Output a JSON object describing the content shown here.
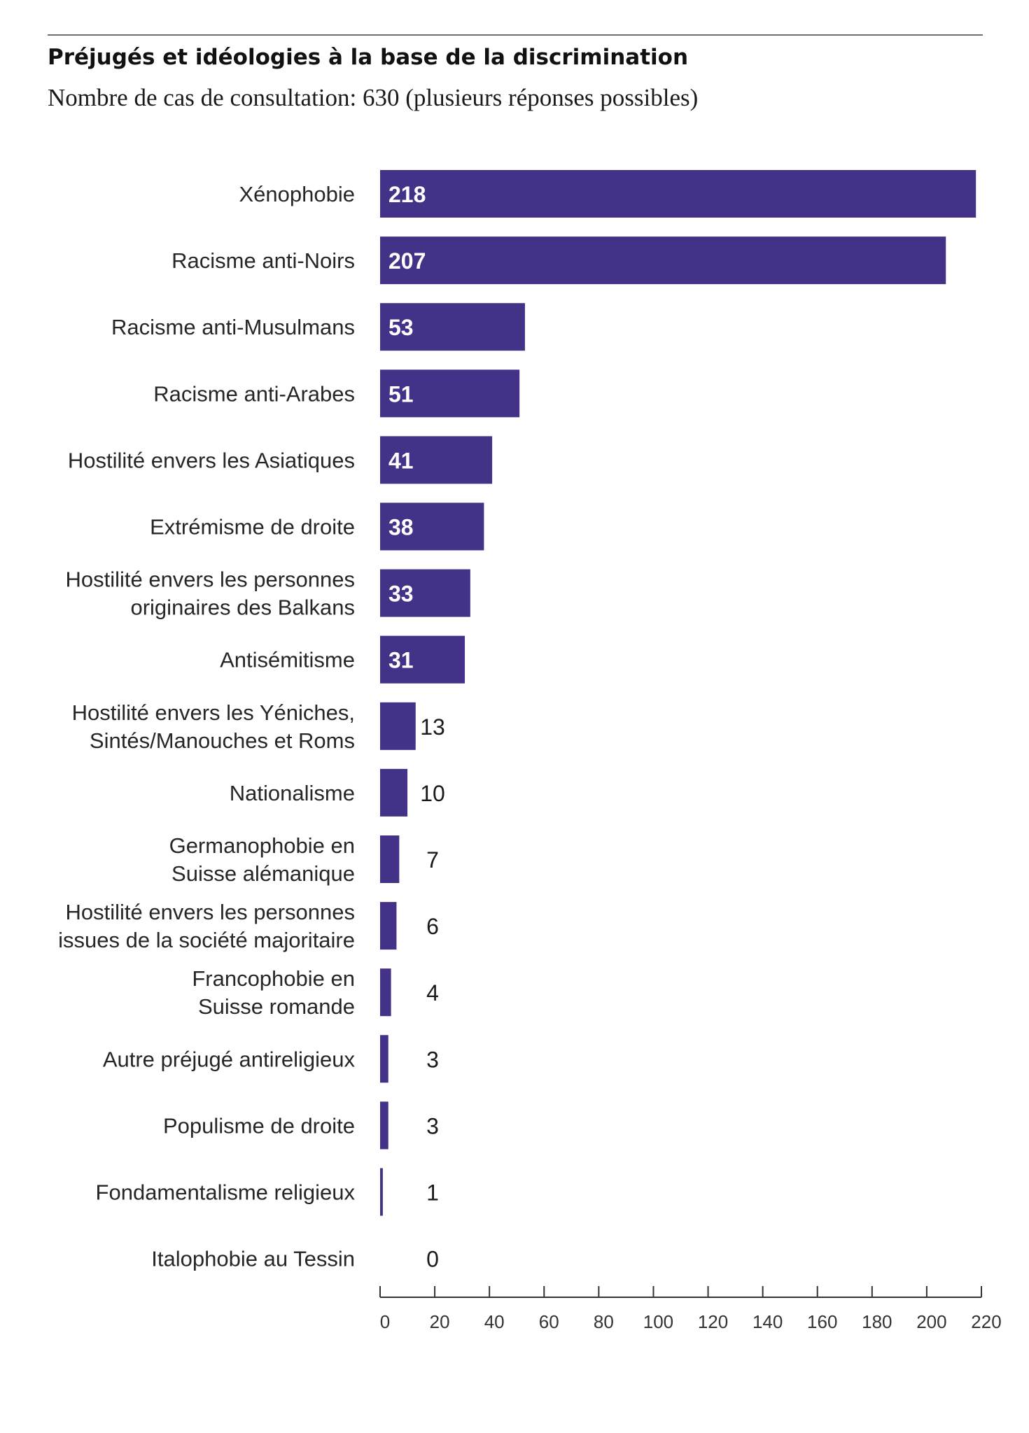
{
  "chart_data": {
    "type": "bar",
    "orientation": "horizontal",
    "title": "Préjugés et idéologies à la base de la discrimination",
    "subtitle": "Nombre de cas de consultation: 630 (plusieurs réponses possibles)",
    "categories": [
      "Xénophobie",
      "Racisme anti-Noirs",
      "Racisme anti-Musulmans",
      "Racisme anti-Arabes",
      "Hostilité envers les Asiatiques",
      "Extrémisme de droite",
      "Hostilité envers les personnes\noriginaires des Balkans",
      "Antisémitisme",
      "Hostilité envers les Yéniches,\nSintés/Manouches et Roms",
      "Nationalisme",
      "Germanophobie en\nSuisse alémanique",
      "Hostilité envers les personnes\nissues de la société majoritaire",
      "Francophobie en\nSuisse romande",
      "Autre préjugé antireligieux",
      "Populisme de droite",
      "Fondamentalisme religieux",
      "Italophobie au Tessin"
    ],
    "values": [
      218,
      207,
      53,
      51,
      41,
      38,
      33,
      31,
      13,
      10,
      7,
      6,
      4,
      3,
      3,
      1,
      0
    ],
    "xlim": [
      0,
      220
    ],
    "xticks": [
      0,
      20,
      40,
      60,
      80,
      100,
      120,
      140,
      160,
      180,
      200,
      220
    ],
    "xlabel": "",
    "ylabel": "",
    "grid": false,
    "legend": "none",
    "colors": {
      "bar": "#433287",
      "label_inside": "#ffffff",
      "label_outside": "#1a1a1a",
      "category_text": "#262626",
      "axis": "#333333",
      "tick_text": "#333333"
    }
  }
}
